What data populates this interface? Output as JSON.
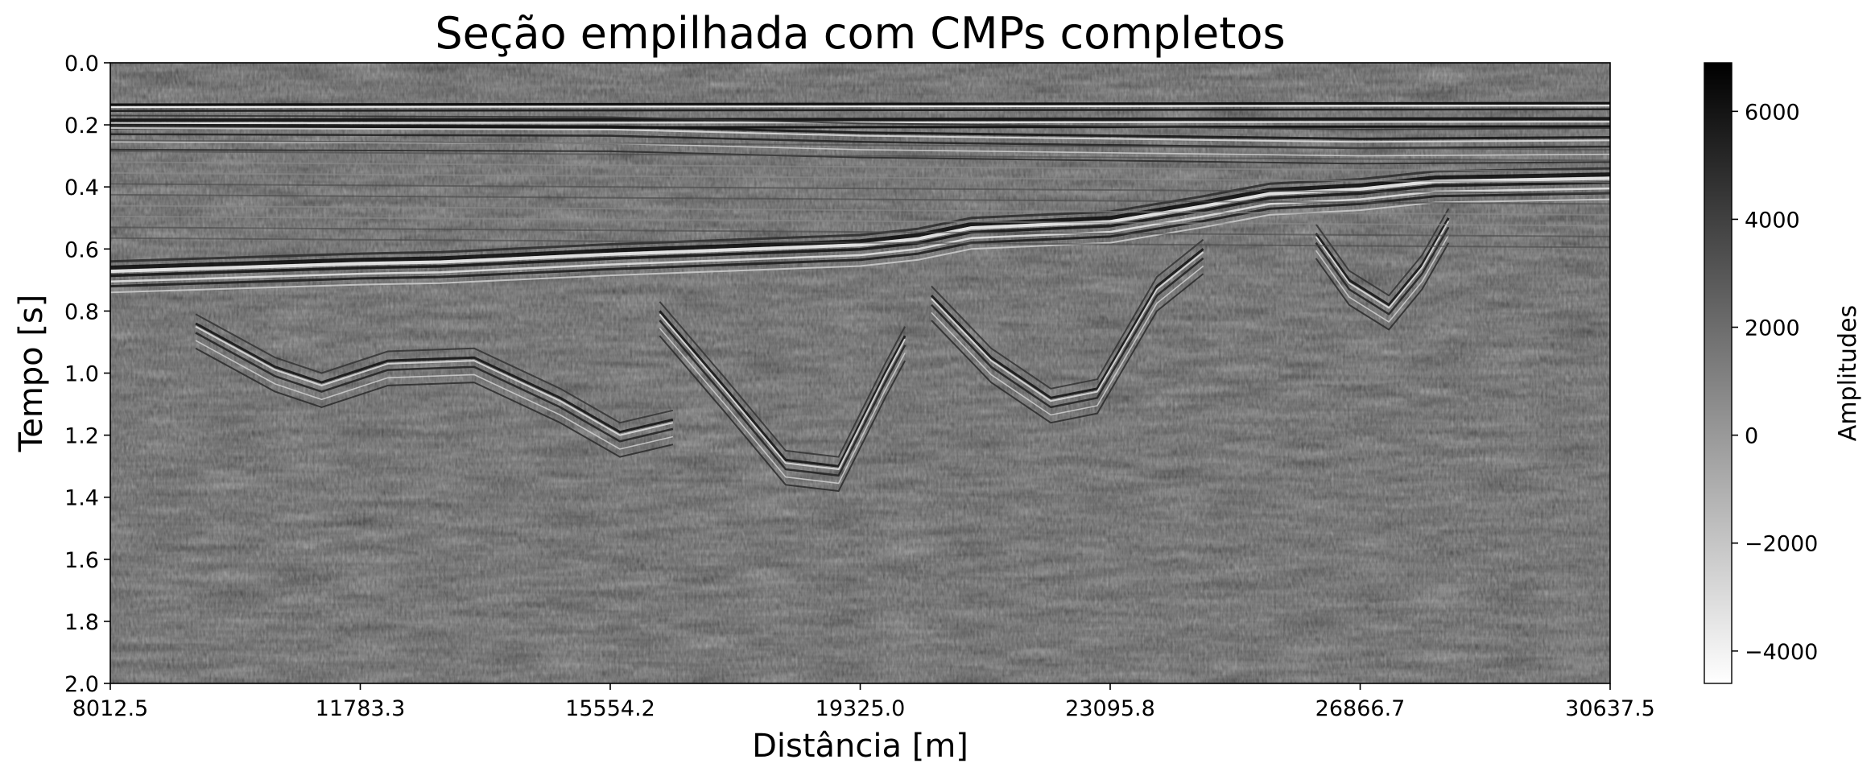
{
  "chart_data": {
    "type": "heatmap",
    "title": "Seção empilhada com CMPs completos",
    "xlabel": "Distância [m]",
    "ylabel": "Tempo [s]",
    "xlim": [
      8012.5,
      30637.5
    ],
    "ylim": [
      2.0,
      0.0
    ],
    "x_ticks": [
      "8012.5",
      "11783.3",
      "15554.2",
      "19325.0",
      "23095.8",
      "26866.7",
      "30637.5"
    ],
    "y_ticks": [
      "0.0",
      "0.2",
      "0.4",
      "0.6",
      "0.8",
      "1.0",
      "1.2",
      "1.4",
      "1.6",
      "1.8",
      "2.0"
    ],
    "colormap": "gray_r",
    "colorbar": {
      "label": "Amplitudes",
      "range": [
        -4600,
        6900
      ],
      "ticks": [
        "6000",
        "4000",
        "2000",
        "0",
        "−2000",
        "−4000"
      ],
      "tick_values": [
        6000,
        4000,
        2000,
        0,
        -2000,
        -4000
      ]
    },
    "water_bottom_time_s": [
      {
        "x": 8012.5,
        "t": 0.135
      },
      {
        "x": 30637.5,
        "t": 0.13
      }
    ],
    "reflectors": [
      {
        "name": "strong-horizon",
        "points": [
          [
            8012.5,
            0.66
          ],
          [
            11783.3,
            0.635
          ],
          [
            13000,
            0.63
          ],
          [
            15554.2,
            0.605
          ],
          [
            19325.0,
            0.575
          ],
          [
            20200,
            0.555
          ],
          [
            21000,
            0.52
          ],
          [
            23095.8,
            0.5
          ],
          [
            24500,
            0.45
          ],
          [
            25500,
            0.41
          ],
          [
            26866.7,
            0.395
          ],
          [
            28000,
            0.37
          ],
          [
            30637.5,
            0.36
          ]
        ]
      },
      {
        "name": "upper-horizon",
        "points": [
          [
            8012.5,
            0.2
          ],
          [
            15554.2,
            0.205
          ],
          [
            19325.0,
            0.225
          ],
          [
            23095.8,
            0.235
          ],
          [
            26866.7,
            0.245
          ],
          [
            30637.5,
            0.24
          ]
        ]
      },
      {
        "name": "basin-1-base",
        "points": [
          [
            9300,
            0.84
          ],
          [
            10500,
            0.98
          ],
          [
            11200,
            1.03
          ],
          [
            12200,
            0.96
          ],
          [
            13500,
            0.95
          ],
          [
            14800,
            1.08
          ],
          [
            15700,
            1.19
          ],
          [
            16500,
            1.15
          ]
        ]
      },
      {
        "name": "basin-2-base",
        "points": [
          [
            16300,
            0.8
          ],
          [
            17300,
            1.05
          ],
          [
            18200,
            1.28
          ],
          [
            19000,
            1.3
          ],
          [
            19700,
            1.0
          ],
          [
            20000,
            0.88
          ]
        ]
      },
      {
        "name": "basin-3-base",
        "points": [
          [
            20400,
            0.75
          ],
          [
            21300,
            0.95
          ],
          [
            22200,
            1.08
          ],
          [
            22900,
            1.05
          ],
          [
            23800,
            0.72
          ],
          [
            24500,
            0.6
          ]
        ]
      },
      {
        "name": "basin-4-base",
        "points": [
          [
            26200,
            0.55
          ],
          [
            26700,
            0.7
          ],
          [
            27300,
            0.78
          ],
          [
            27800,
            0.65
          ],
          [
            28200,
            0.5
          ]
        ]
      }
    ]
  }
}
